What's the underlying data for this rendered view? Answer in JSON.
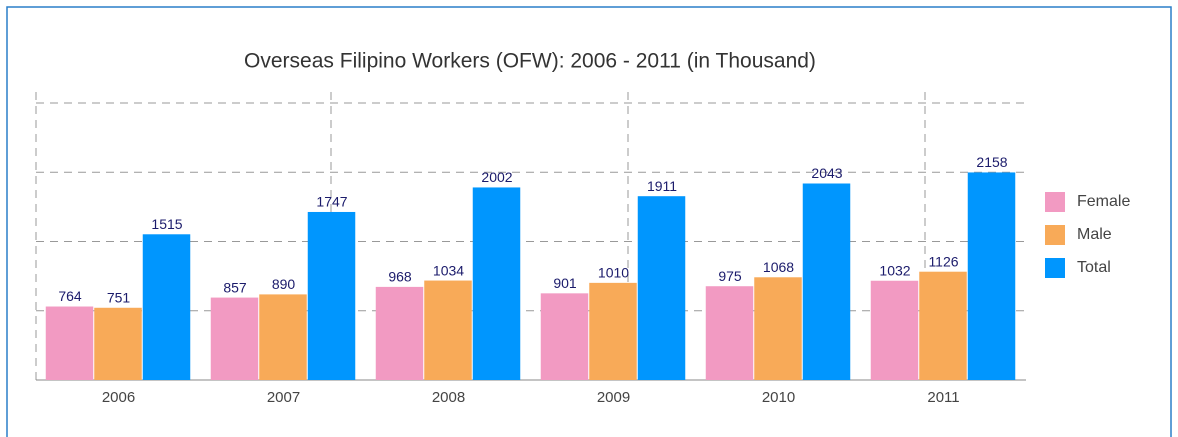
{
  "chart_data": {
    "type": "bar",
    "title": "Overseas Filipino Workers (OFW): 2006 - 2011 (in Thousand)",
    "categories": [
      "2006",
      "2007",
      "2008",
      "2009",
      "2010",
      "2011"
    ],
    "series": [
      {
        "name": "Female",
        "color": "#f29ac2",
        "values": [
          764,
          857,
          968,
          901,
          975,
          1032
        ]
      },
      {
        "name": "Male",
        "color": "#f8aa58",
        "values": [
          751,
          890,
          1034,
          1010,
          1068,
          1126
        ]
      },
      {
        "name": "Total",
        "color": "#0096fe",
        "values": [
          1515,
          1747,
          2002,
          1911,
          2043,
          2158
        ]
      }
    ],
    "ylim": [
      0,
      2880
    ],
    "yticks": [
      0,
      720,
      1440,
      2160,
      2880
    ],
    "grid": true,
    "legend": "right"
  }
}
